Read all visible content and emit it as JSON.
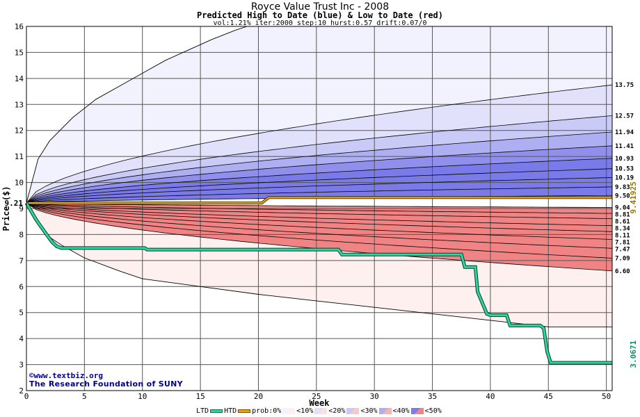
{
  "header": {
    "title": "Royce Value Trust Inc - 2008",
    "subtitle": "Predicted High to Date (blue) &  Low to Date (red)",
    "params": "vol:1.21% iter:2000 step:10 hurst:0.57 drift:0.07/0"
  },
  "credits": {
    "line1": "©www.textbiz.org",
    "line2": "The Research Foundation of SUNY"
  },
  "legend": {
    "ltd": "LTD",
    "htd": "HTD",
    "prob": "prob:0%",
    "b10": "<10%",
    "b20": "<20%",
    "b30": "<30%",
    "b40": "<40%",
    "b50": "<50%"
  },
  "colors": {
    "ltd": "#2fd6a0",
    "htd": "#e8a800",
    "blue_bands": [
      "#f2f2ff",
      "#e1e1fb",
      "#cacaf7",
      "#aeaef2",
      "#9090ec",
      "#7a7ae8"
    ],
    "red_bands": [
      "#fff0f0",
      "#fde1e1",
      "#facaca",
      "#f7b1b1",
      "#f49999",
      "#f08484"
    ]
  },
  "chart_data": {
    "type": "line",
    "title": "Royce Value Trust Inc - 2008",
    "xlabel": "Week",
    "ylabel": "Price ($)",
    "xlim": [
      0,
      50.5
    ],
    "ylim": [
      2,
      16
    ],
    "x_ticks": [
      "0",
      "5",
      "10",
      "15",
      "20",
      "25",
      "30",
      "35",
      "40",
      "45",
      "50"
    ],
    "y_ticks": [
      "2",
      "3",
      "4",
      "5",
      "6",
      "7",
      "8",
      "9",
      "10",
      "11",
      "12",
      "13",
      "14",
      "15",
      "16"
    ],
    "start_price": 9.21,
    "start_label": "9.21",
    "upper_contours": [
      {
        "end": 13.75,
        "label": "13.75"
      },
      {
        "end": 12.57,
        "label": "12.57"
      },
      {
        "end": 11.94,
        "label": "11.94"
      },
      {
        "end": 11.41,
        "label": "11.41"
      },
      {
        "end": 10.93,
        "label": "10.93"
      },
      {
        "end": 10.53,
        "label": "10.53"
      },
      {
        "end": 10.19,
        "label": "10.19"
      },
      {
        "end": 9.83,
        "label": "9.83"
      },
      {
        "end": 9.5,
        "label": "9.50"
      }
    ],
    "lower_contours": [
      {
        "end": 9.04,
        "label": "9.04"
      },
      {
        "end": 8.81,
        "label": "8.81"
      },
      {
        "end": 8.61,
        "label": "8.61"
      },
      {
        "end": 8.34,
        "label": "8.34"
      },
      {
        "end": 8.11,
        "label": "8.11"
      },
      {
        "end": 7.81,
        "label": "7.81"
      },
      {
        "end": 7.47,
        "label": "7.47"
      },
      {
        "end": 7.09,
        "label": "7.09"
      },
      {
        "end": 6.6,
        "label": "6.60"
      }
    ],
    "outer_upper": {
      "x": [
        0,
        1,
        2,
        4,
        6,
        8,
        10,
        12,
        14,
        16,
        18,
        19
      ],
      "y": [
        9.21,
        10.9,
        11.6,
        12.5,
        13.2,
        13.7,
        14.2,
        14.7,
        15.1,
        15.5,
        15.85,
        16
      ]
    },
    "outer_lower": {
      "x": [
        0,
        1,
        2,
        3,
        5,
        8,
        10,
        15,
        20,
        25,
        30,
        35,
        40,
        45,
        50.5
      ],
      "y": [
        9.21,
        8.5,
        7.9,
        7.6,
        7.1,
        6.6,
        6.3,
        6.0,
        5.7,
        5.45,
        5.2,
        4.95,
        4.7,
        4.45,
        4.45
      ]
    },
    "htd_series": {
      "name": "HTD",
      "x": [
        0,
        20.3,
        20.6,
        20.9,
        50.5
      ],
      "y": [
        9.21,
        9.21,
        9.32,
        9.42,
        9.42
      ],
      "end_label": "9.41925"
    },
    "ltd_series": {
      "name": "LTD",
      "x": [
        0,
        0.4,
        0.8,
        1.1,
        1.5,
        1.9,
        2.2,
        2.6,
        3.0,
        10.2,
        10.4,
        26.9,
        27.2,
        37.5,
        37.8,
        38.7,
        38.9,
        39.7,
        40.0,
        41.4,
        41.7,
        44.3,
        44.6,
        44.9,
        45.2,
        50.5
      ],
      "y": [
        9.21,
        8.9,
        8.6,
        8.4,
        8.15,
        7.9,
        7.72,
        7.55,
        7.48,
        7.48,
        7.42,
        7.42,
        7.23,
        7.23,
        6.75,
        6.75,
        5.8,
        4.95,
        4.9,
        4.9,
        4.5,
        4.5,
        4.4,
        3.5,
        3.07,
        3.07
      ],
      "end_label": "3.0671"
    }
  }
}
